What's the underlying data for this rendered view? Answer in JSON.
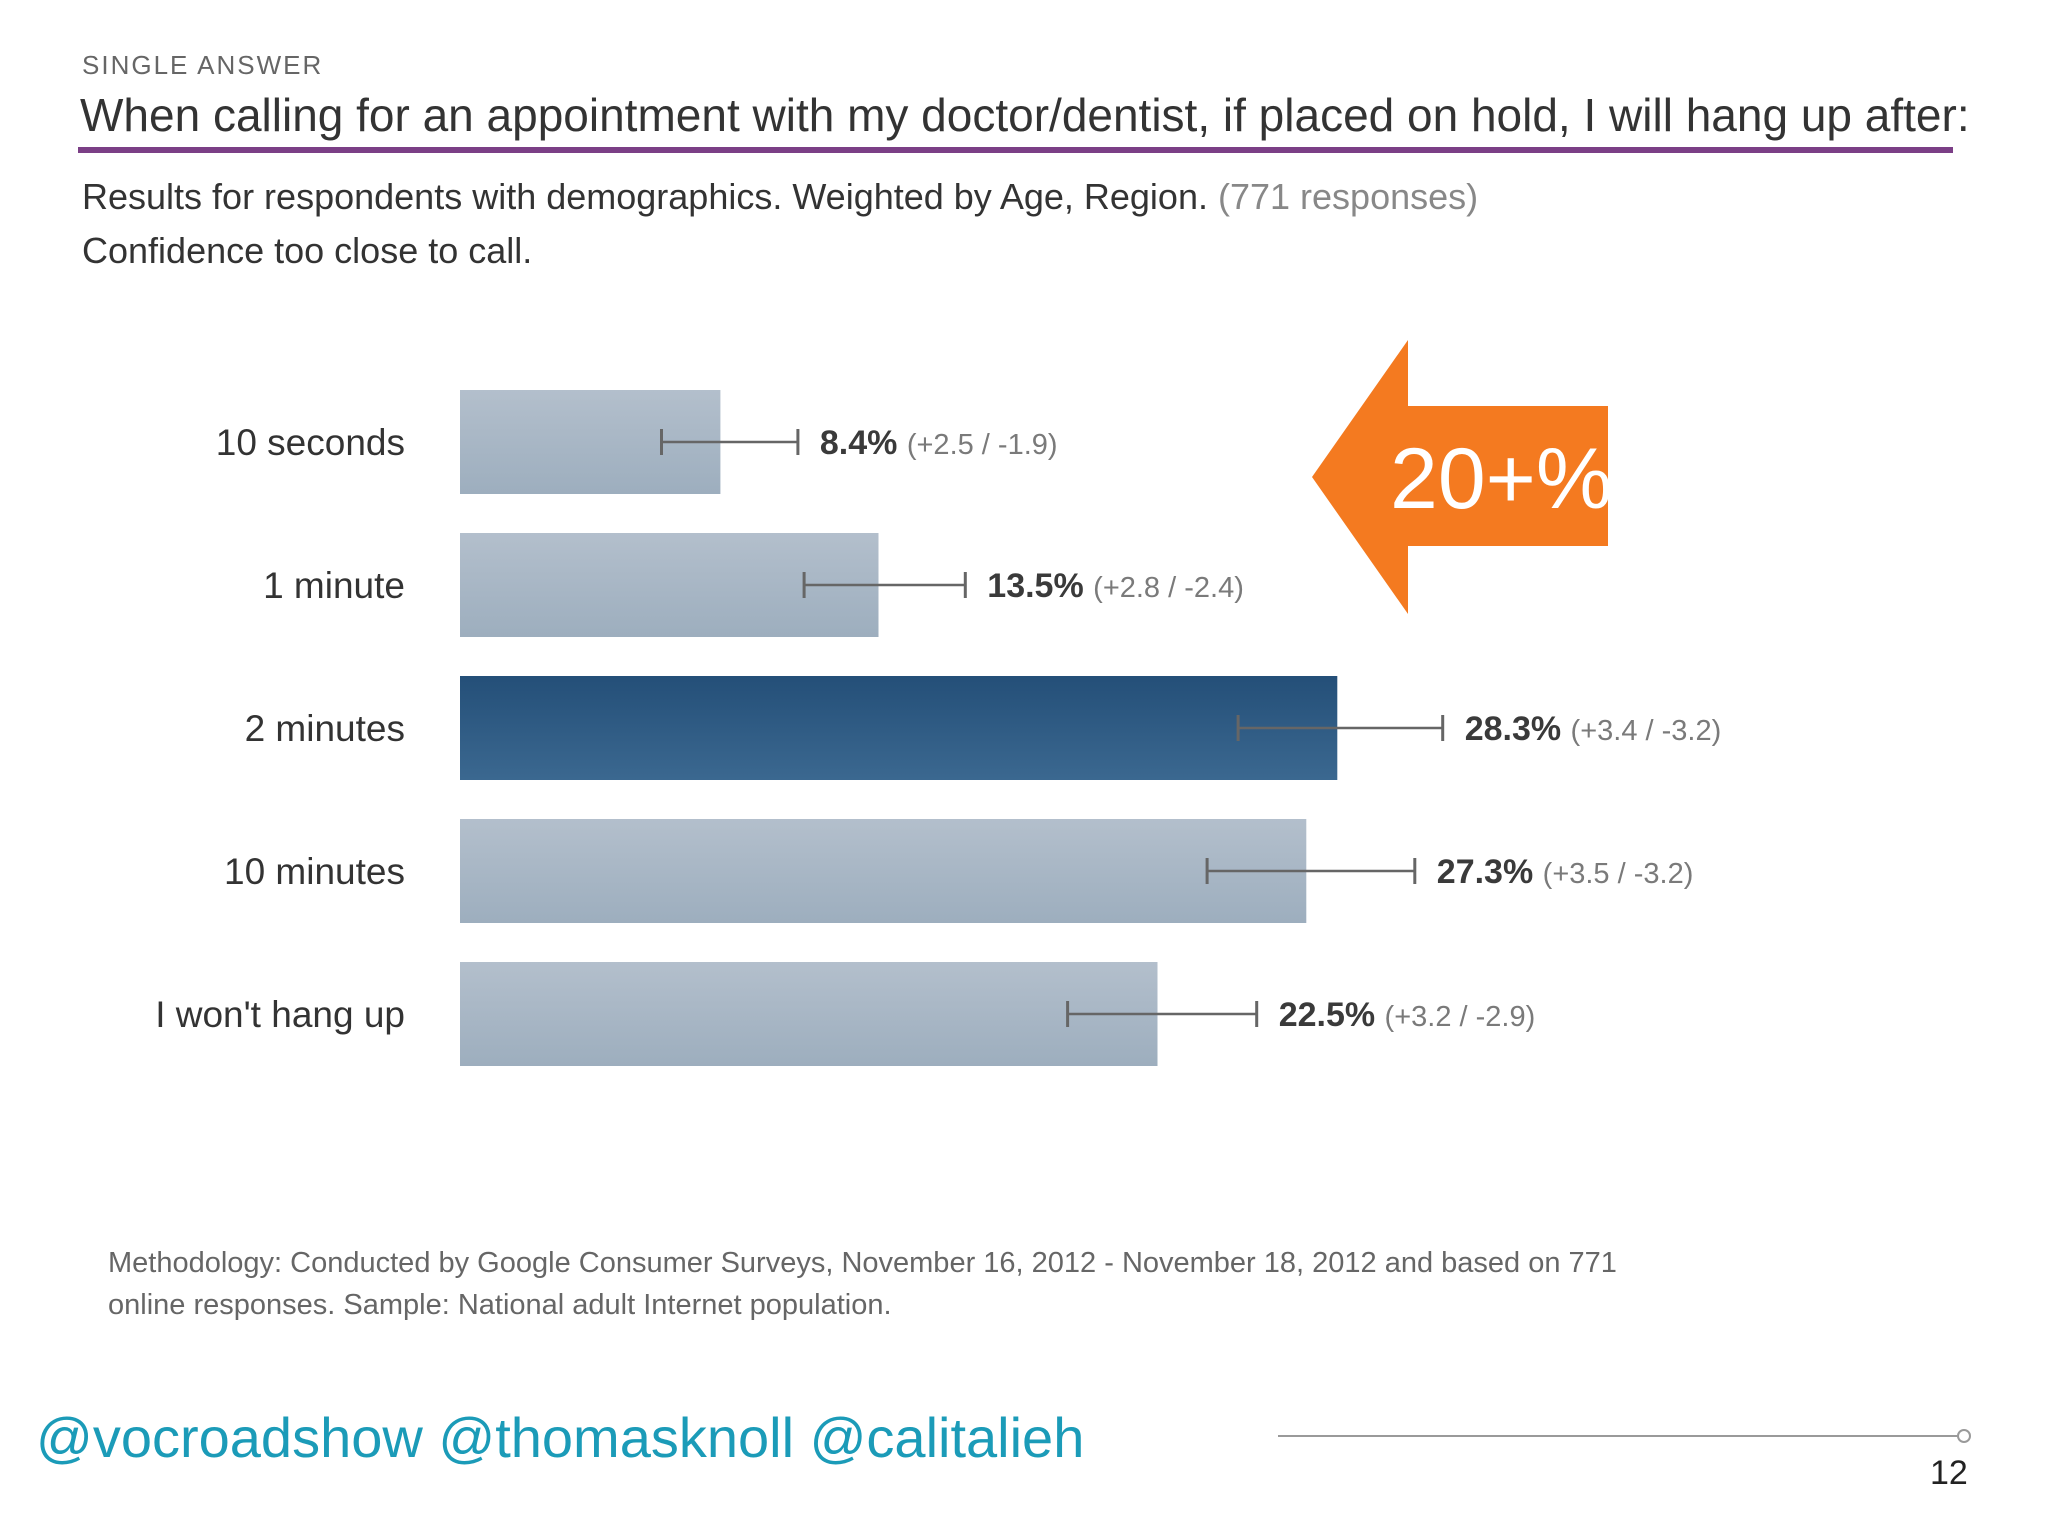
{
  "header": {
    "kicker": "SINGLE ANSWER",
    "question": "When calling for an appointment with my doctor/dentist, if placed on hold, I will hang up after:",
    "subtitle": "Results for respondents with demographics. Weighted by Age, Region.",
    "responses": "(771 responses)",
    "confidence": "Confidence too close to call."
  },
  "chart_data": {
    "type": "bar",
    "orientation": "horizontal",
    "title": "When calling for an appointment with my doctor/dentist, if placed on hold, I will hang up after:",
    "categories": [
      "10 seconds",
      "1 minute",
      "2 minutes",
      "10 minutes",
      "I won't hang up"
    ],
    "values": [
      8.4,
      13.5,
      28.3,
      27.3,
      22.5
    ],
    "value_labels": [
      "8.4%",
      "13.5%",
      "28.3%",
      "27.3%",
      "22.5%"
    ],
    "error_plus": [
      2.5,
      2.8,
      3.4,
      3.5,
      3.2
    ],
    "error_minus": [
      1.9,
      2.4,
      3.2,
      3.2,
      2.9
    ],
    "error_labels": [
      "(+2.5 / -1.9)",
      "(+2.8 / -2.4)",
      "(+3.4 / -3.2)",
      "(+3.5 / -3.2)",
      "(+3.2 / -2.9)"
    ],
    "highlight_index": 2,
    "xlim": [
      0,
      30
    ],
    "colors": {
      "bar": "#a6b4c3",
      "highlight": "#2f5a80",
      "errorbar": "#666666"
    }
  },
  "callout": {
    "text": "20+%",
    "color": "#f47a20"
  },
  "methodology": "Methodology: Conducted by Google Consumer Surveys, November 16, 2012 - November 18, 2012 and based on 771 online responses. Sample: National adult Internet population.",
  "footer": {
    "handles": "@vocroadshow @thomasknoll @calitalieh",
    "page_number": "12"
  }
}
